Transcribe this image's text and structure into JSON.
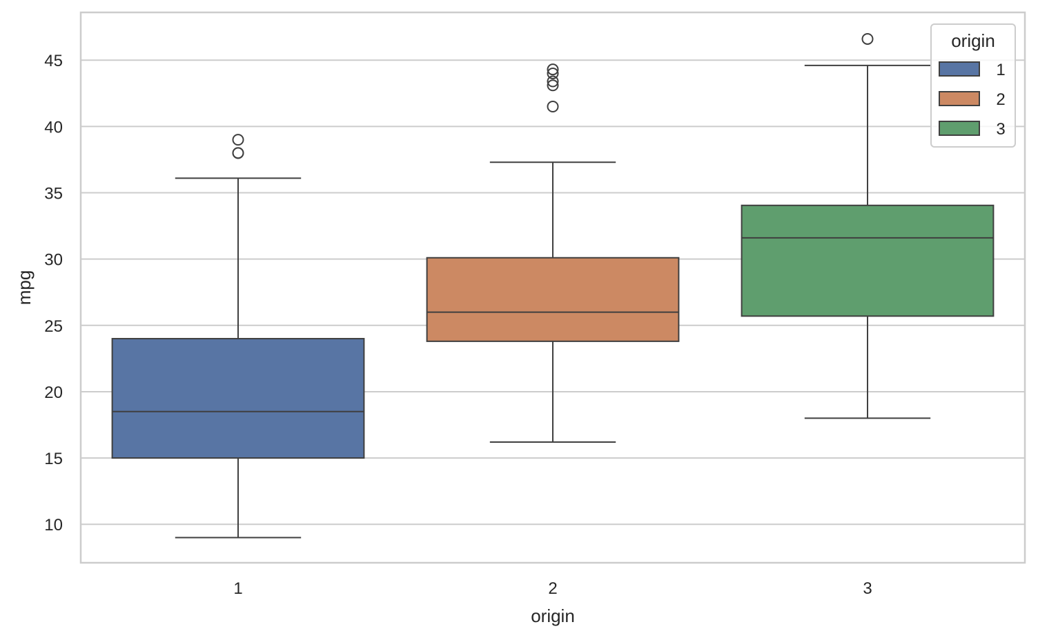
{
  "chart_data": {
    "type": "box",
    "title": "",
    "xlabel": "origin",
    "ylabel": "mpg",
    "categories": [
      "1",
      "2",
      "3"
    ],
    "ylim": [
      7.1,
      48.6
    ],
    "yticks": [
      10,
      15,
      20,
      25,
      30,
      35,
      40,
      45
    ],
    "grid": "horizontal",
    "legend": {
      "title": "origin",
      "placement": "top-right",
      "entries": [
        "1",
        "2",
        "3"
      ]
    },
    "colors": [
      "#5875a4",
      "#cc8963",
      "#5f9e6e"
    ],
    "boxes": [
      {
        "category": "1",
        "whisker_low": 9.0,
        "q1": 15.0,
        "median": 18.5,
        "q3": 24.0,
        "whisker_high": 36.1,
        "outliers": [
          39.0,
          38.0,
          38.0
        ]
      },
      {
        "category": "2",
        "whisker_low": 16.2,
        "q1": 23.8,
        "median": 26.0,
        "q3": 30.1,
        "whisker_high": 37.3,
        "outliers": [
          41.5,
          43.1,
          43.4,
          44.0,
          44.3
        ]
      },
      {
        "category": "3",
        "whisker_low": 18.0,
        "q1": 25.7,
        "median": 31.6,
        "q3": 34.05,
        "whisker_high": 44.6,
        "outliers": [
          46.6
        ]
      }
    ]
  }
}
